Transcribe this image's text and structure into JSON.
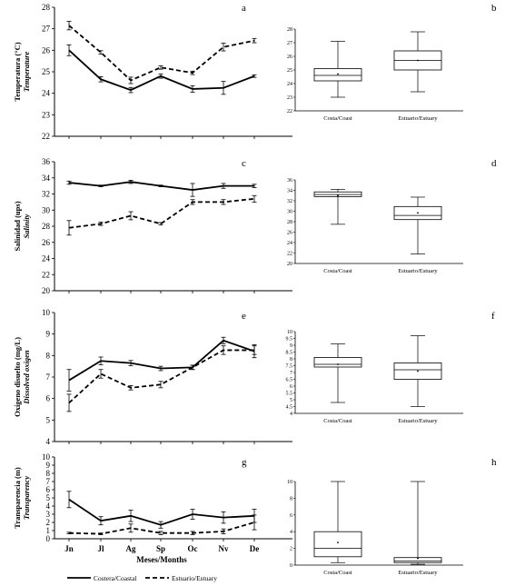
{
  "months": [
    "Jn",
    "Jl",
    "Ag",
    "Sp",
    "Oc",
    "Nv",
    "De"
  ],
  "xlabel": "Meses/Months",
  "legend": {
    "coastal": "Costera/Coastal",
    "estuary": "Estuario/Estuary"
  },
  "chart_data": [
    {
      "type": "line",
      "panel": "a",
      "ylabel": "Temperatura (°C)",
      "ylabel2": "Temperature",
      "ylim": [
        22,
        28
      ],
      "yticks": [
        22,
        23,
        24,
        25,
        26,
        27,
        28
      ],
      "series": [
        {
          "name": "Costera/Coastal",
          "style": "solid",
          "values": [
            26.0,
            24.65,
            24.15,
            24.8,
            24.2,
            24.25,
            24.8
          ],
          "err": [
            0.25,
            0.12,
            0.12,
            0.1,
            0.15,
            0.3,
            0.06
          ]
        },
        {
          "name": "Estuario/Estuary",
          "style": "dashed",
          "values": [
            27.15,
            25.9,
            24.6,
            25.2,
            24.95,
            26.15,
            26.45
          ],
          "err": [
            0.2,
            0.08,
            0.15,
            0.08,
            0.08,
            0.18,
            0.1
          ]
        }
      ]
    },
    {
      "type": "line",
      "panel": "c",
      "ylabel": "Salinidad (ups)",
      "ylabel2": "Salinity",
      "ylim": [
        20,
        36
      ],
      "yticks": [
        20,
        22,
        24,
        26,
        28,
        30,
        32,
        34,
        36
      ],
      "series": [
        {
          "name": "Costera/Coastal",
          "style": "solid",
          "values": [
            33.4,
            33.0,
            33.5,
            33.0,
            32.5,
            33.0,
            33.0
          ],
          "err": [
            0.2,
            0.1,
            0.2,
            0.1,
            0.8,
            0.3,
            0.2
          ]
        },
        {
          "name": "Estuario/Estuary",
          "style": "dashed",
          "values": [
            27.8,
            28.3,
            29.3,
            28.3,
            31.0,
            31.0,
            31.4
          ],
          "err": [
            0.9,
            0.2,
            0.5,
            0.15,
            0.3,
            0.3,
            0.4
          ]
        }
      ]
    },
    {
      "type": "line",
      "panel": "e",
      "ylabel": "Oxígeno disuelto (mg/L)",
      "ylabel2": "Dissolved oxigen",
      "ylim": [
        4,
        10
      ],
      "yticks": [
        4,
        5,
        6,
        7,
        8,
        9,
        10
      ],
      "series": [
        {
          "name": "Costera/Coastal",
          "style": "solid",
          "values": [
            6.85,
            7.75,
            7.65,
            7.4,
            7.45,
            8.7,
            8.2
          ],
          "err": [
            0.5,
            0.18,
            0.12,
            0.1,
            0.1,
            0.15,
            0.3
          ]
        },
        {
          "name": "Estuario/Estuary",
          "style": "dashed",
          "values": [
            5.8,
            7.15,
            6.5,
            6.65,
            7.45,
            8.25,
            8.25
          ],
          "err": [
            0.4,
            0.2,
            0.1,
            0.15,
            0.1,
            0.2,
            0.2
          ]
        }
      ]
    },
    {
      "type": "line",
      "panel": "g",
      "ylabel": "Transparencia (m)",
      "ylabel2": "Transparency",
      "ylim": [
        0,
        10
      ],
      "yticks": [
        0,
        1,
        2,
        3,
        4,
        5,
        6,
        7,
        8,
        9,
        10
      ],
      "series": [
        {
          "name": "Costera/Coastal",
          "style": "solid",
          "values": [
            4.8,
            2.2,
            2.8,
            1.7,
            3.0,
            2.6,
            2.8
          ],
          "err": [
            1.0,
            0.5,
            0.7,
            0.4,
            0.6,
            0.7,
            0.8
          ]
        },
        {
          "name": "Estuario/Estuary",
          "style": "dashed",
          "values": [
            0.7,
            0.6,
            1.3,
            0.7,
            0.7,
            0.9,
            2.0
          ],
          "err": [
            0.1,
            0.1,
            0.5,
            0.2,
            0.2,
            0.3,
            0.9
          ]
        }
      ]
    },
    {
      "type": "box",
      "panel": "b",
      "ylim": [
        22,
        28
      ],
      "yticks": [
        22,
        23,
        24,
        25,
        26,
        27,
        28
      ],
      "categories": [
        "Costa/Coast",
        "Estuario/Estuary"
      ],
      "boxes": [
        {
          "min": 23.0,
          "q1": 24.2,
          "median": 24.6,
          "q3": 25.1,
          "max": 27.1,
          "mean": 24.7
        },
        {
          "min": 23.4,
          "q1": 25.0,
          "median": 25.7,
          "q3": 26.4,
          "max": 27.8,
          "mean": 25.7
        }
      ]
    },
    {
      "type": "box",
      "panel": "d",
      "ylim": [
        20,
        36
      ],
      "yticks": [
        20,
        22,
        24,
        26,
        28,
        30,
        32,
        34,
        36
      ],
      "categories": [
        "Costa/Coast",
        "Estuario/Estuary"
      ],
      "boxes": [
        {
          "min": 27.5,
          "q1": 32.8,
          "median": 33.2,
          "q3": 33.7,
          "max": 34.2,
          "mean": 33.0
        },
        {
          "min": 21.8,
          "q1": 28.4,
          "median": 29.2,
          "q3": 30.9,
          "max": 32.7,
          "mean": 29.7
        }
      ]
    },
    {
      "type": "box",
      "panel": "f",
      "ylim": [
        4,
        10
      ],
      "yticks": [
        4,
        4.5,
        5,
        5.5,
        6,
        6.5,
        7,
        7.5,
        8,
        8.5,
        9,
        9.5,
        10
      ],
      "categories": [
        "Costa/Coast",
        "Estuario/Estuary"
      ],
      "boxes": [
        {
          "min": 4.8,
          "q1": 7.4,
          "median": 7.6,
          "q3": 8.1,
          "max": 9.1,
          "mean": 7.6
        },
        {
          "min": 4.5,
          "q1": 6.5,
          "median": 7.2,
          "q3": 7.7,
          "max": 9.7,
          "mean": 7.1
        }
      ]
    },
    {
      "type": "box",
      "panel": "h",
      "ylim": [
        0,
        10
      ],
      "yticks": [
        0,
        2,
        4,
        6,
        8,
        10
      ],
      "categories": [
        "Costa/Coast",
        "Estuario/Estuary"
      ],
      "boxes": [
        {
          "min": 0.3,
          "q1": 1.0,
          "median": 2.0,
          "q3": 4.0,
          "max": 10.0,
          "mean": 2.7
        },
        {
          "min": 0.1,
          "q1": 0.3,
          "median": 0.5,
          "q3": 0.9,
          "max": 10.0,
          "mean": 0.8
        }
      ]
    }
  ]
}
